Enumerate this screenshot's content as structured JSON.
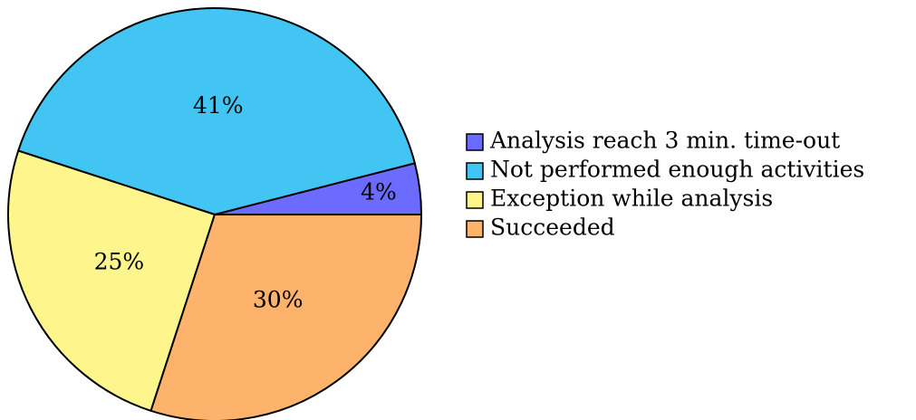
{
  "chart_data": {
    "type": "pie",
    "categories": [
      "Analysis reach 3 min. time-out",
      "Not performed enough activities",
      "Exception while analysis",
      "Succeeded"
    ],
    "values": [
      4,
      41,
      25,
      30
    ],
    "value_labels": [
      "4%",
      "41%",
      "25%",
      "30%"
    ],
    "colors": [
      "#6b6bff",
      "#42c5f3",
      "#fef58c",
      "#fdb36b"
    ],
    "legend": "right"
  }
}
